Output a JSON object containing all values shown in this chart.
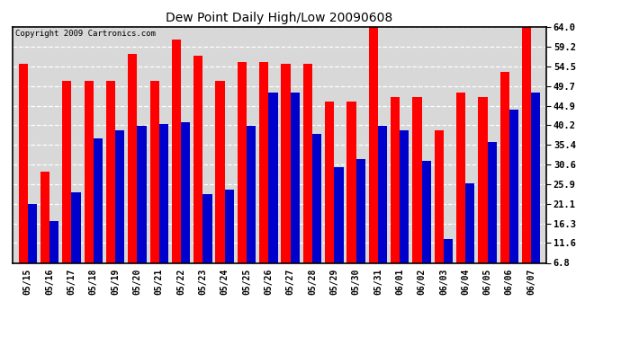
{
  "title": "Dew Point Daily High/Low 20090608",
  "copyright": "Copyright 2009 Cartronics.com",
  "dates": [
    "05/15",
    "05/16",
    "05/17",
    "05/18",
    "05/19",
    "05/20",
    "05/21",
    "05/22",
    "05/23",
    "05/24",
    "05/25",
    "05/26",
    "05/27",
    "05/28",
    "05/29",
    "05/30",
    "05/31",
    "06/01",
    "06/02",
    "06/03",
    "06/04",
    "06/05",
    "06/06",
    "06/07"
  ],
  "highs": [
    55.0,
    29.0,
    51.0,
    51.0,
    51.0,
    57.5,
    51.0,
    61.0,
    57.0,
    51.0,
    55.5,
    55.5,
    55.0,
    55.0,
    46.0,
    46.0,
    64.0,
    47.0,
    47.0,
    39.0,
    48.0,
    47.0,
    53.0,
    64.0
  ],
  "lows": [
    21.0,
    17.0,
    24.0,
    37.0,
    39.0,
    40.0,
    40.5,
    41.0,
    23.5,
    24.5,
    40.0,
    48.0,
    48.0,
    38.0,
    30.0,
    32.0,
    40.0,
    39.0,
    31.5,
    12.5,
    26.0,
    36.0,
    44.0,
    48.0
  ],
  "high_color": "#ff0000",
  "low_color": "#0000cc",
  "bg_color": "#ffffff",
  "plot_bg_color": "#d8d8d8",
  "grid_color": "#ffffff",
  "yticks": [
    6.8,
    11.6,
    16.3,
    21.1,
    25.9,
    30.6,
    35.4,
    40.2,
    44.9,
    49.7,
    54.5,
    59.2,
    64.0
  ],
  "ymin": 6.8,
  "ymax": 64.0,
  "bar_width": 0.42,
  "figwidth": 6.9,
  "figheight": 3.75,
  "dpi": 100
}
